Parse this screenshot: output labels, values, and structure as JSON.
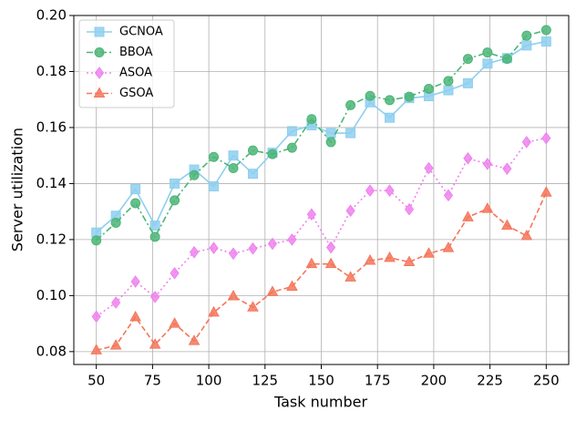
{
  "chart_data": {
    "type": "line",
    "xlabel": "Task number",
    "ylabel": "Server utilization",
    "x": [
      50,
      58.7,
      67.4,
      76.1,
      84.8,
      93.5,
      102.2,
      110.9,
      119.6,
      128.3,
      137.0,
      145.7,
      154.3,
      163.0,
      171.7,
      180.4,
      189.1,
      197.8,
      206.5,
      215.2,
      223.9,
      232.6,
      241.3,
      250
    ],
    "series": [
      {
        "name": "GCNOA",
        "color": "#8ecfef",
        "dash": "solid",
        "marker": "square",
        "values": [
          0.1225,
          0.1285,
          0.138,
          0.125,
          0.14,
          0.145,
          0.139,
          0.15,
          0.1435,
          0.151,
          0.1587,
          0.1608,
          0.158,
          0.158,
          0.169,
          0.1635,
          0.1705,
          0.1712,
          0.1733,
          0.1758,
          0.1828,
          0.1848,
          0.1893,
          0.1907
        ]
      },
      {
        "name": "BBOA",
        "color": "#4cb577",
        "dash": "dashdot",
        "marker": "circle",
        "values": [
          0.1197,
          0.126,
          0.133,
          0.121,
          0.134,
          0.143,
          0.1495,
          0.1455,
          0.1518,
          0.1505,
          0.1528,
          0.163,
          0.1548,
          0.168,
          0.1713,
          0.1698,
          0.171,
          0.1738,
          0.1766,
          0.1845,
          0.1868,
          0.1845,
          0.1928,
          0.1948
        ]
      },
      {
        "name": "ASOA",
        "color": "#ee82ee",
        "dash": "dotted",
        "marker": "diamond",
        "values": [
          0.0925,
          0.0975,
          0.105,
          0.0995,
          0.108,
          0.1155,
          0.117,
          0.115,
          0.1168,
          0.1185,
          0.12,
          0.129,
          0.1172,
          0.1303,
          0.1375,
          0.1375,
          0.1308,
          0.1455,
          0.1358,
          0.149,
          0.147,
          0.1453,
          0.1548,
          0.1562
        ]
      },
      {
        "name": "GSOA",
        "color": "#f4765b",
        "dash": "dashed",
        "marker": "triangle",
        "values": [
          0.0805,
          0.0822,
          0.0923,
          0.0825,
          0.09,
          0.0838,
          0.094,
          0.0998,
          0.0958,
          0.1013,
          0.1032,
          0.1113,
          0.1113,
          0.1065,
          0.1125,
          0.1135,
          0.112,
          0.115,
          0.117,
          0.128,
          0.131,
          0.125,
          0.1213,
          0.1368
        ]
      }
    ],
    "xlim": [
      40,
      260
    ],
    "xticks": [
      50,
      75,
      100,
      125,
      150,
      175,
      200,
      225,
      250
    ],
    "ylim": [
      0.0754,
      0.2
    ],
    "yticks": [
      0.08,
      {
        "value": 0.1,
        "label": "0.10"
      },
      0.12,
      0.14,
      0.16,
      0.18,
      {
        "value": 0.2,
        "label": "0.20"
      }
    ],
    "grid": true,
    "legend": "upper left"
  }
}
